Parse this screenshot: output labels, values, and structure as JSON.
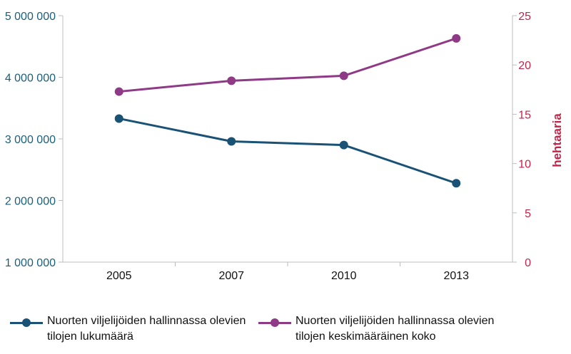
{
  "chart_data": {
    "type": "line",
    "categories": [
      "2005",
      "2007",
      "2010",
      "2013"
    ],
    "series": [
      {
        "name": "Nuorten viljelijöiden hallinnassa olevien tilojen lukumäärä",
        "axis": "left",
        "color": "#1a5276",
        "values": [
          3330000,
          2960000,
          2900000,
          2280000
        ]
      },
      {
        "name": "Nuorten viljelijöiden hallinnassa olevien tilojen keskimääräinen koko",
        "axis": "right",
        "color": "#8e3a86",
        "values": [
          17.3,
          18.4,
          18.9,
          22.7
        ]
      }
    ],
    "y_left": {
      "ylim": [
        1000000,
        5000000
      ],
      "ticks": [
        1000000,
        2000000,
        3000000,
        4000000,
        5000000
      ],
      "tick_labels": [
        "1 000 000",
        "2 000 000",
        "3 000 000",
        "4 000 000",
        "5 000 000"
      ],
      "color": "#1a5f7a"
    },
    "y_right": {
      "label": "hehtaaria",
      "ylim": [
        0,
        25
      ],
      "ticks": [
        0,
        5,
        10,
        15,
        20,
        25
      ],
      "tick_labels": [
        "0",
        "5",
        "10",
        "15",
        "20",
        "25"
      ],
      "color": "#c0264a"
    },
    "grid": false,
    "legend_position": "bottom"
  }
}
